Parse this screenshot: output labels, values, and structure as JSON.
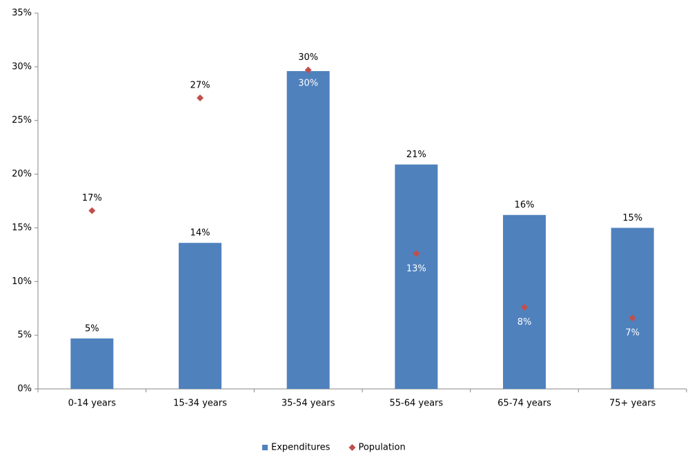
{
  "chart_data": {
    "type": "bar",
    "categories": [
      "0-14 years",
      "15-34 years",
      "35-54 years",
      "55-64 years",
      "65-74 years",
      "75+ years"
    ],
    "series": [
      {
        "name": "Expenditures",
        "type": "bar",
        "color": "#4f81bd",
        "values": [
          4.7,
          13.6,
          29.6,
          20.9,
          16.2,
          15.0
        ],
        "value_labels": [
          "5%",
          "14%",
          "30%",
          "21%",
          "16%",
          "15%"
        ]
      },
      {
        "name": "Population",
        "type": "scatter",
        "color": "#c0504d",
        "values": [
          16.6,
          27.1,
          29.7,
          12.6,
          7.6,
          6.6
        ],
        "value_labels": [
          "17%",
          "27%",
          "30%",
          "13%",
          "8%",
          "7%"
        ]
      }
    ],
    "ylim": [
      0,
      35
    ],
    "yticks": [
      {
        "value": 0,
        "label": "0%"
      },
      {
        "value": 5,
        "label": "5%"
      },
      {
        "value": 10,
        "label": "10%"
      },
      {
        "value": 15,
        "label": "15%"
      },
      {
        "value": 20,
        "label": "20%"
      },
      {
        "value": 25,
        "label": "25%"
      },
      {
        "value": 30,
        "label": "30%"
      },
      {
        "value": 35,
        "label": "35%"
      }
    ],
    "grid": false,
    "legend": "bottom"
  }
}
